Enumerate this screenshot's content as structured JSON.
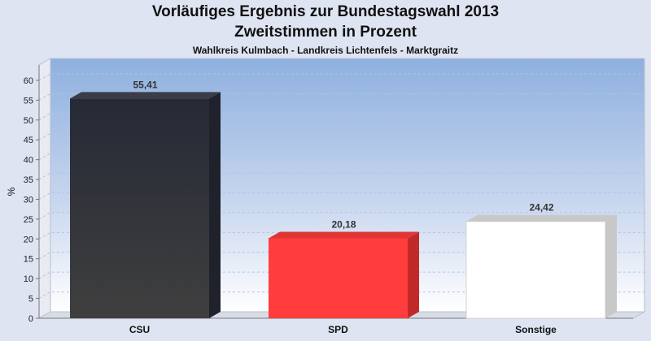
{
  "chart_data": {
    "type": "bar",
    "title_line1": "Vorläufiges Ergebnis zur Bundestagswahl 2013",
    "title_line2": "Zweitstimmen in Prozent",
    "subtitle": "Wahlkreis Kulmbach - Landkreis Lichtenfels - Marktgraitz",
    "ylabel": "%",
    "categories": [
      "CSU",
      "SPD",
      "Sonstige"
    ],
    "values": [
      55.41,
      20.18,
      24.42
    ],
    "value_labels": [
      "55,41",
      "20,18",
      "24,42"
    ],
    "ylim": [
      0,
      65
    ],
    "yticks": [
      0,
      5,
      10,
      15,
      20,
      25,
      30,
      35,
      40,
      45,
      50,
      55,
      60
    ],
    "grid": true,
    "colors": [
      "#2a2d38",
      "#ff3d3d",
      "#ffffff"
    ],
    "side_colors": [
      "#1f222b",
      "#c22a2a",
      "#c8c8c8"
    ],
    "top_colors": [
      "#3a3d48",
      "#e03535",
      "#c8c8c8"
    ],
    "legend": "none"
  }
}
